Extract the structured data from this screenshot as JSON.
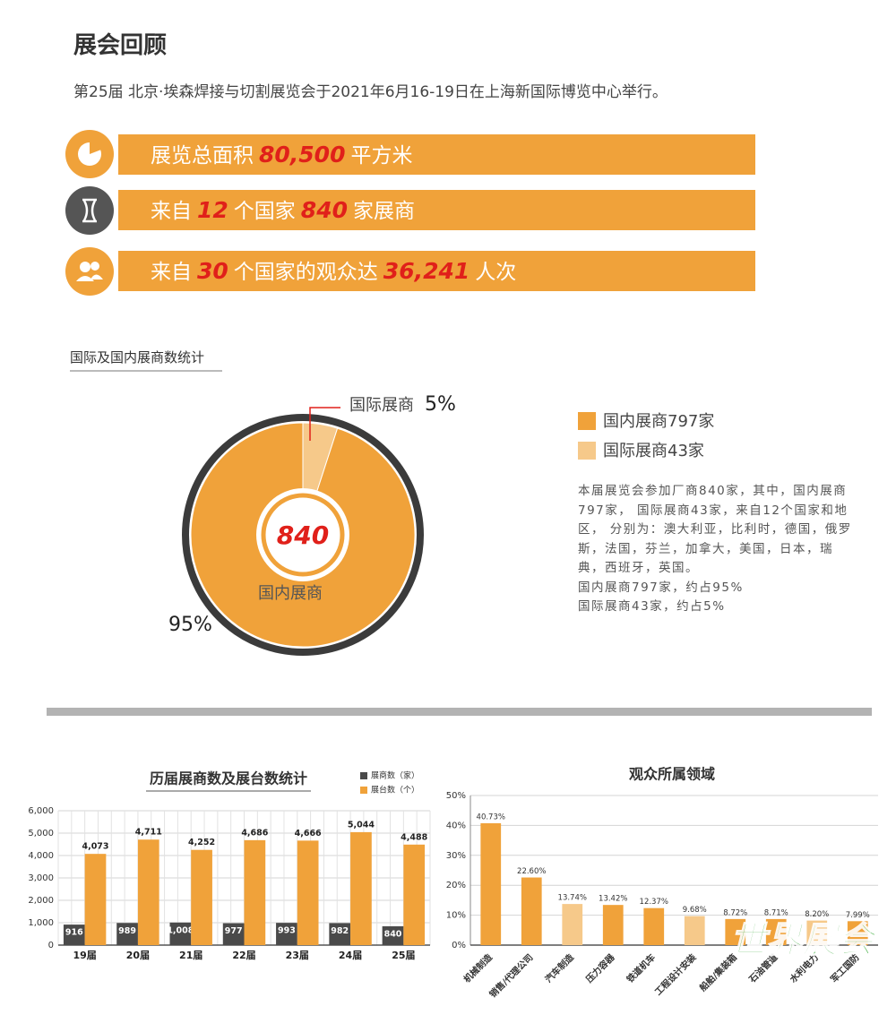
{
  "header": {
    "title": "展会回顾",
    "subtitle": "第25届 北京·埃森焊接与切割展览会于2021年6月16-19日在上海新国际博览中心举行。"
  },
  "stats": [
    {
      "parts": [
        "展览总面积",
        "80,500",
        "平方米"
      ]
    },
    {
      "parts": [
        "来自",
        "12",
        "个国家",
        "840",
        "家展商"
      ]
    },
    {
      "parts": [
        "来自",
        "30",
        "个国家的观众达",
        "36,241",
        "人次"
      ]
    }
  ],
  "section_title": "国际及国内展商数统计",
  "note": [
    "本届展览会参加厂商840家，其中，国内展商797家， 国际展商43家，来自12个国家和地区， 分别为：澳大利亚，比利时，德国，俄罗斯，法国，芬兰，加拿大，美国，日本，瑞典，西班牙，英国。",
    "国内展商797家，约占95%",
    "国际展商43家，约占5%"
  ],
  "watermark": "世界展会",
  "chart_data": [
    {
      "type": "pie",
      "center_label": "840",
      "categories": [
        "国内展商",
        "国际展商"
      ],
      "values": [
        95,
        5
      ],
      "value_labels": [
        "95%",
        "5%"
      ],
      "colors": [
        "#f0a23a",
        "#f6c98a"
      ],
      "legend": [
        "国内展商797家",
        "国际展商43家"
      ]
    },
    {
      "type": "bar",
      "title": "历届展商数及展台数统计",
      "categories": [
        "19届",
        "20届",
        "21届",
        "22届",
        "23届",
        "24届",
        "25届"
      ],
      "series": [
        {
          "name": "展商数（家）",
          "color": "#4a4a4a",
          "values": [
            916,
            989,
            1008,
            977,
            993,
            982,
            840
          ],
          "value_labels": [
            "916",
            "989",
            "1,008",
            "977",
            "993",
            "982",
            "840"
          ]
        },
        {
          "name": "展台数（个）",
          "color": "#f0a23a",
          "values": [
            4073,
            4711,
            4252,
            4686,
            4666,
            5044,
            4488
          ],
          "value_labels": [
            "4,073",
            "4,711",
            "4,252",
            "4,686",
            "4,666",
            "5,044",
            "4,488"
          ]
        }
      ],
      "ylim": [
        0,
        6000
      ],
      "yticks": [
        0,
        {
          "value": 1000,
          "label": "1,000"
        },
        {
          "value": 2000,
          "label": "2,000"
        },
        {
          "value": 3000,
          "label": "3,000"
        },
        {
          "value": 4000,
          "label": "4,000"
        },
        {
          "value": 5000,
          "label": "5,000"
        },
        {
          "value": 6000,
          "label": "6,000"
        }
      ],
      "grid": true
    },
    {
      "type": "bar",
      "title": "观众所属领域",
      "categories": [
        "机械制造",
        "销售/代理公司",
        "汽车制造",
        "压力容器",
        "铁道机车",
        "工程设计安装",
        "船舶/集装箱",
        "石油管道",
        "水利电力",
        "军工国防"
      ],
      "values": [
        40.73,
        22.6,
        13.74,
        13.42,
        12.37,
        9.68,
        8.72,
        8.71,
        8.2,
        7.99
      ],
      "value_labels": [
        "40.73%",
        "22.60%",
        "13.74%",
        "13.42%",
        "12.37%",
        "9.68%",
        "8.72%",
        "8.71%",
        "8.20%",
        "7.99%"
      ],
      "colors": [
        "#f0a23a",
        "#f0a23a",
        "#f6c98a",
        "#f0a23a",
        "#f0a23a",
        "#f6c98a",
        "#f0a23a",
        "#f0a23a",
        "#f6c98a",
        "#f0a23a"
      ],
      "ylim": [
        0,
        50
      ],
      "yticks": [
        {
          "value": 0,
          "label": "0%"
        },
        {
          "value": 10,
          "label": "10%"
        },
        {
          "value": 20,
          "label": "20%"
        },
        {
          "value": 30,
          "label": "30%"
        },
        {
          "value": 40,
          "label": "40%"
        },
        {
          "value": 50,
          "label": "50%"
        }
      ],
      "grid": true
    }
  ]
}
